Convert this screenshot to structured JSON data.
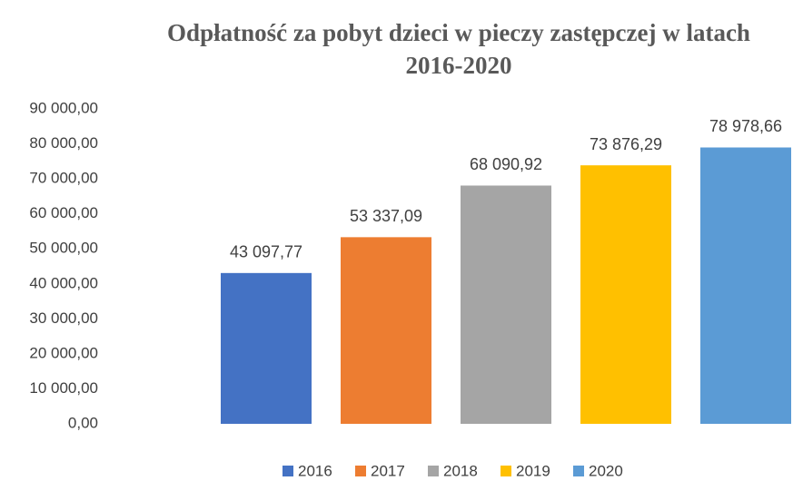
{
  "chart_data": {
    "type": "bar",
    "title": "Odpłatność za pobyt dzieci w pieczy zastępczej w latach 2016-2020",
    "categories": [
      null
    ],
    "series": [
      {
        "name": "2016",
        "color": "#4472c4",
        "values": [
          43097.77
        ],
        "value_labels": [
          "43 097,77"
        ]
      },
      {
        "name": "2017",
        "color": "#ed7d31",
        "values": [
          53337.09
        ],
        "value_labels": [
          "53 337,09"
        ]
      },
      {
        "name": "2018",
        "color": "#a5a5a5",
        "values": [
          68090.92
        ],
        "value_labels": [
          "68 090,92"
        ]
      },
      {
        "name": "2019",
        "color": "#ffc000",
        "values": [
          73876.29
        ],
        "value_labels": [
          "73 876,29"
        ]
      },
      {
        "name": "2020",
        "color": "#5b9bd5",
        "values": [
          78978.66
        ],
        "value_labels": [
          "78 978,66"
        ]
      }
    ],
    "ylim": [
      0,
      90000
    ],
    "yticks": [
      {
        "value": 0,
        "label": "0,00"
      },
      {
        "value": 10000,
        "label": "10 000,00"
      },
      {
        "value": 20000,
        "label": "20 000,00"
      },
      {
        "value": 30000,
        "label": "30 000,00"
      },
      {
        "value": 40000,
        "label": "40 000,00"
      },
      {
        "value": 50000,
        "label": "50 000,00"
      },
      {
        "value": 60000,
        "label": "60 000,00"
      },
      {
        "value": 70000,
        "label": "70 000,00"
      },
      {
        "value": 80000,
        "label": "80 000,00"
      },
      {
        "value": 90000,
        "label": "90 000,00"
      }
    ],
    "grid": false,
    "legend": "bottom"
  }
}
